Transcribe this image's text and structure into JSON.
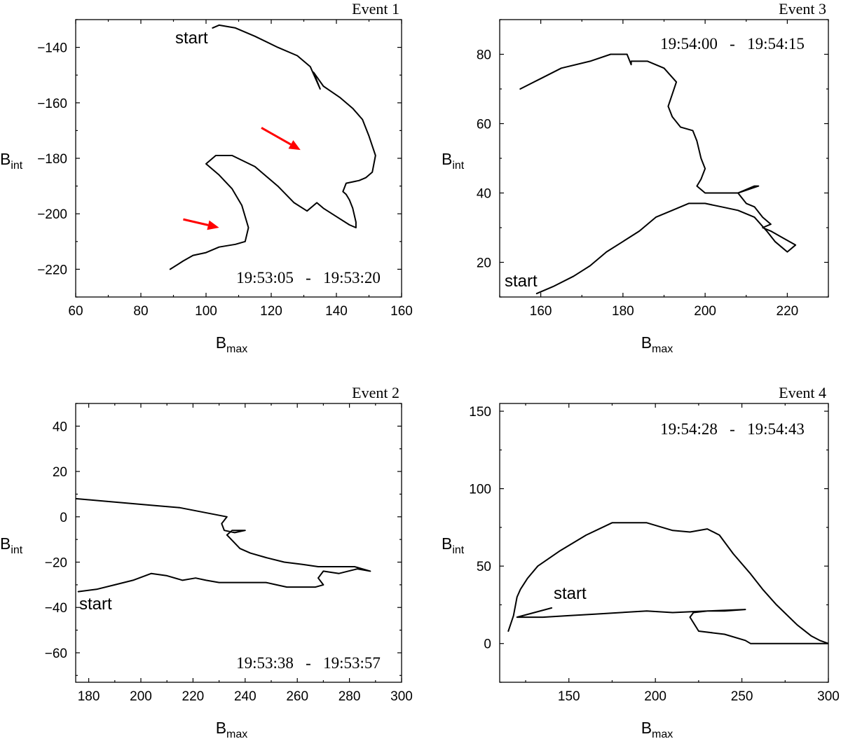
{
  "chart_data": [
    {
      "type": "line",
      "title": "Event 1",
      "time_range": "19:53:05   -   19:53:20",
      "start_label": "start",
      "xlabel": "B",
      "xlabel_sub": "max",
      "ylabel": "B",
      "ylabel_sub": "int",
      "xlim": [
        60,
        160
      ],
      "ylim": [
        -230,
        -130
      ],
      "xticks": [
        60,
        80,
        100,
        120,
        140,
        160
      ],
      "yticks": [
        -220,
        -200,
        -180,
        -160,
        -140
      ],
      "start_point": [
        98,
        -132
      ],
      "arrows": [
        {
          "from": [
            117,
            -169
          ],
          "to": [
            129,
            -177
          ]
        },
        {
          "from": [
            93,
            -202
          ],
          "to": [
            104,
            -205
          ]
        }
      ],
      "series": [
        {
          "x": [
            89,
            93,
            96,
            100,
            104,
            109,
            112,
            113,
            111,
            108,
            104,
            100,
            103,
            108,
            115,
            122,
            127,
            131,
            134,
            136,
            140,
            144,
            146,
            146,
            145,
            144,
            143,
            142,
            143,
            147,
            149,
            151,
            152,
            150,
            148,
            145,
            141,
            136,
            133,
            135,
            132,
            128,
            122,
            115,
            109,
            104,
            102
          ],
          "y": [
            -220,
            -217,
            -215,
            -214,
            -212,
            -211,
            -210,
            -205,
            -197,
            -191,
            -186,
            -182,
            -179,
            -179,
            -183,
            -190,
            -196,
            -199,
            -196,
            -198,
            -201,
            -204,
            -205,
            -203,
            -198,
            -195,
            -193,
            -192,
            -189,
            -188,
            -187,
            -185,
            -179,
            -172,
            -166,
            -162,
            -158,
            -154,
            -149,
            -155,
            -147,
            -143,
            -140,
            -136,
            -133,
            -132,
            -133
          ]
        }
      ]
    },
    {
      "type": "line",
      "title": "Event 3",
      "time_range": "19:54:00   -   19:54:15",
      "start_label": "start",
      "xlabel": "B",
      "xlabel_sub": "max",
      "ylabel": "B",
      "ylabel_sub": "int",
      "xlim": [
        150,
        230
      ],
      "ylim": [
        10,
        90
      ],
      "xticks": [
        160,
        180,
        200,
        220
      ],
      "yticks": [
        20,
        40,
        60,
        80
      ],
      "start_point": [
        159,
        11
      ],
      "series": [
        {
          "x": [
            159,
            163,
            168,
            172,
            176,
            180,
            184,
            188,
            192,
            196,
            200,
            204,
            208,
            212,
            215,
            217,
            219,
            220,
            222,
            219,
            216,
            214,
            216,
            214,
            212,
            210,
            208,
            212,
            213,
            208,
            204,
            200,
            198,
            199,
            200,
            199,
            198,
            197,
            194,
            192,
            191,
            193,
            190,
            186,
            184,
            182,
            182,
            181,
            177,
            172,
            165,
            160,
            155
          ],
          "y": [
            11,
            13,
            16,
            19,
            23,
            26,
            29,
            33,
            35,
            37,
            37,
            36,
            35,
            33,
            29,
            26,
            24,
            23,
            25,
            27,
            29,
            30,
            31,
            33,
            36,
            37,
            40,
            42,
            42,
            40,
            40,
            40,
            42,
            44,
            47,
            50,
            55,
            58,
            59,
            62,
            65,
            72,
            76,
            78,
            78,
            78,
            77,
            80,
            80,
            78,
            76,
            73,
            70
          ]
        }
      ]
    },
    {
      "type": "line",
      "title": "Event 2",
      "time_range": "19:53:38   -   19:53:57",
      "start_label": "start",
      "xlabel": "B",
      "xlabel_sub": "max",
      "ylabel": "B",
      "ylabel_sub": "int",
      "xlim": [
        175,
        300
      ],
      "ylim": [
        -73,
        50
      ],
      "xticks": [
        180,
        200,
        220,
        240,
        260,
        280,
        300
      ],
      "yticks": [
        -60,
        -40,
        -20,
        0,
        20,
        40
      ],
      "start_point": [
        176,
        -33
      ],
      "series": [
        {
          "x": [
            176,
            183,
            190,
            197,
            204,
            210,
            216,
            221,
            225,
            230,
            236,
            242,
            248,
            252,
            256,
            262,
            267,
            270,
            268,
            270,
            276,
            283,
            288,
            282,
            275,
            268,
            262,
            255,
            248,
            242,
            238,
            233,
            235,
            240,
            236,
            232,
            231,
            233,
            224,
            215,
            205,
            195,
            185,
            175
          ],
          "y": [
            -33,
            -32,
            -30,
            -28,
            -25,
            -26,
            -28,
            -27,
            -28,
            -29,
            -29,
            -29,
            -29,
            -30,
            -31,
            -31,
            -31,
            -30,
            -27,
            -24,
            -25,
            -23,
            -24,
            -22,
            -22,
            -22,
            -21,
            -20,
            -18,
            -16,
            -14,
            -8,
            -6,
            -6,
            -7,
            -6,
            -3,
            0,
            2,
            4,
            5,
            6,
            7,
            8
          ]
        }
      ]
    },
    {
      "type": "line",
      "title": "Event 4",
      "time_range": "19:54:28   -   19:54:43",
      "start_label": "start",
      "xlabel": "B",
      "xlabel_sub": "max",
      "ylabel": "B",
      "ylabel_sub": "int",
      "xlim": [
        110,
        300
      ],
      "ylim": [
        -25,
        155
      ],
      "xticks": [
        150,
        200,
        250,
        300
      ],
      "yticks": [
        0,
        50,
        100,
        150
      ],
      "start_point": [
        140,
        23
      ],
      "series": [
        {
          "x": [
            140,
            130,
            120,
            135,
            150,
            165,
            180,
            195,
            210,
            230,
            252,
            240,
            230,
            222,
            220,
            225,
            240,
            252,
            255,
            280,
            300,
            295,
            290,
            282,
            270,
            262,
            255,
            245,
            237,
            230,
            220,
            210,
            195,
            175,
            160,
            145,
            132,
            126,
            122,
            120,
            118,
            115
          ],
          "y": [
            23,
            20,
            17,
            17,
            18,
            19,
            20,
            21,
            20,
            21,
            22,
            21,
            21,
            20,
            17,
            8,
            6,
            2,
            0,
            0,
            0,
            2,
            5,
            12,
            25,
            35,
            45,
            58,
            70,
            74,
            72,
            73,
            78,
            78,
            70,
            60,
            50,
            42,
            35,
            30,
            18,
            8
          ]
        }
      ]
    }
  ]
}
